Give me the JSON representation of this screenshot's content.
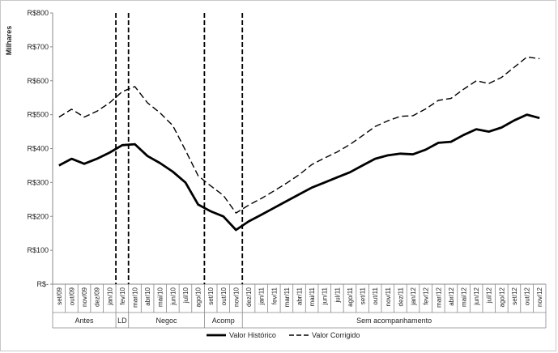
{
  "chart_data": {
    "type": "line",
    "ylabel": "Milhares",
    "ylim": [
      0,
      800
    ],
    "yticks": [
      {
        "value": 0,
        "label": "R$-"
      },
      {
        "value": 100,
        "label": "R$100"
      },
      {
        "value": 200,
        "label": "R$200"
      },
      {
        "value": 300,
        "label": "R$300"
      },
      {
        "value": 400,
        "label": "R$400"
      },
      {
        "value": 500,
        "label": "R$500"
      },
      {
        "value": 600,
        "label": "R$600"
      },
      {
        "value": 700,
        "label": "R$700"
      },
      {
        "value": 800,
        "label": "R$800"
      }
    ],
    "categories": [
      "set/09",
      "out/09",
      "nov/09",
      "dez/09",
      "jan/10",
      "fev/10",
      "mar/10",
      "abr/10",
      "mai/10",
      "jun/10",
      "jul/10",
      "ago/10",
      "set/10",
      "out/10",
      "nov/10",
      "dez/10",
      "jan/11",
      "fev/11",
      "mar/11",
      "abr/11",
      "mai/11",
      "jun/11",
      "jul/11",
      "ago/11",
      "set/11",
      "out/11",
      "nov/11",
      "dez/11",
      "jan/12",
      "fev/12",
      "mar/12",
      "abr/12",
      "mai/12",
      "jun/12",
      "jul/12",
      "ago/12",
      "set/12",
      "out/12",
      "nov/12"
    ],
    "series": [
      {
        "name": "Valor Histórico",
        "style": "solid",
        "color": "#000000",
        "values": [
          350,
          370,
          355,
          370,
          388,
          410,
          413,
          378,
          357,
          332,
          300,
          235,
          215,
          200,
          160,
          185,
          205,
          225,
          245,
          265,
          285,
          300,
          315,
          330,
          350,
          370,
          380,
          385,
          383,
          397,
          417,
          420,
          440,
          457,
          450,
          462,
          483,
          500,
          490
        ]
      },
      {
        "name": "Valor Corrigido",
        "style": "dashed",
        "color": "#000000",
        "values": [
          493,
          516,
          493,
          510,
          535,
          568,
          583,
          535,
          505,
          468,
          395,
          320,
          290,
          262,
          210,
          233,
          253,
          275,
          298,
          323,
          353,
          372,
          390,
          412,
          438,
          465,
          482,
          495,
          497,
          517,
          542,
          548,
          575,
          600,
          592,
          610,
          640,
          670,
          665
        ]
      }
    ],
    "phases": [
      {
        "label": "Antes",
        "start": 0,
        "end": 4
      },
      {
        "label": "LD",
        "start": 5,
        "end": 5
      },
      {
        "label": "Negoc",
        "start": 6,
        "end": 11
      },
      {
        "label": "Acomp",
        "start": 12,
        "end": 14
      },
      {
        "label": "Sem acompanhamento",
        "start": 15,
        "end": 38
      }
    ],
    "vlines_after_index": [
      4,
      5,
      11,
      14
    ],
    "grid": false,
    "legend_position": "bottom"
  }
}
